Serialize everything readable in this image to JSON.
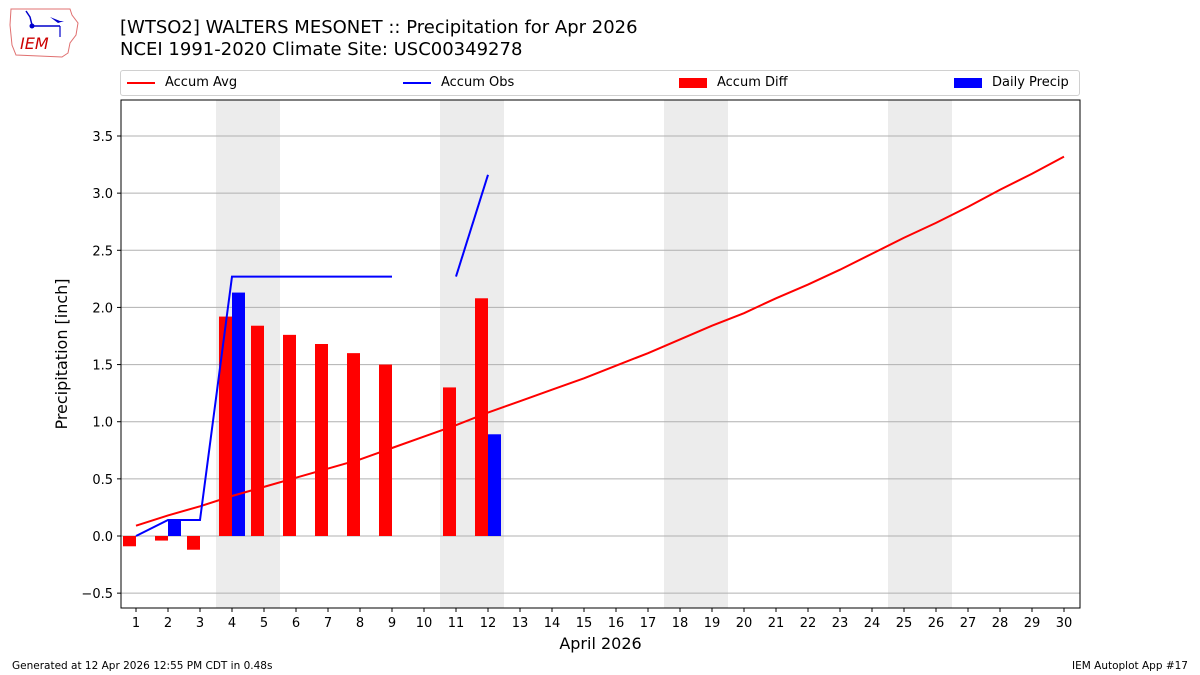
{
  "header": {
    "title_line1": "[WTSO2] WALTERS MESONET :: Precipitation for Apr 2026",
    "title_line2": "NCEI 1991-2020 Climate Site: USC00349278",
    "logo_text": "IEM"
  },
  "legend": [
    {
      "label": "Accum Avg",
      "type": "line",
      "color": "#ff0000"
    },
    {
      "label": "Accum Obs",
      "type": "line",
      "color": "#0000ff"
    },
    {
      "label": "Accum Diff",
      "type": "bar",
      "color": "#ff0000"
    },
    {
      "label": "Daily Precip",
      "type": "bar",
      "color": "#0000ff"
    }
  ],
  "footer": {
    "left": "Generated at 12 Apr 2026 12:55 PM CDT in 0.48s",
    "right": "IEM Autoplot App #17"
  },
  "chart_data": {
    "type": "bar",
    "title": "[WTSO2] WALTERS MESONET :: Precipitation for Apr 2026",
    "subtitle": "NCEI 1991-2020 Climate Site: USC00349278",
    "xlabel": "April 2026",
    "ylabel": "Precipitation [inch]",
    "ylim": [
      -0.63,
      3.82
    ],
    "xlim": [
      0.5,
      30.5
    ],
    "yticks": [
      -0.5,
      0.0,
      0.5,
      1.0,
      1.5,
      2.0,
      2.5,
      3.0,
      3.5
    ],
    "ytick_labels": [
      "−0.5",
      "0.0",
      "0.5",
      "1.0",
      "1.5",
      "2.0",
      "2.5",
      "3.0",
      "3.5"
    ],
    "xticks": [
      1,
      2,
      3,
      4,
      5,
      6,
      7,
      8,
      9,
      10,
      11,
      12,
      13,
      14,
      15,
      16,
      17,
      18,
      19,
      20,
      21,
      22,
      23,
      24,
      25,
      26,
      27,
      28,
      29,
      30
    ],
    "grid": "horizontal",
    "legend_position": "top",
    "weekend_shading": [
      [
        3.5,
        5.5
      ],
      [
        10.5,
        12.5
      ],
      [
        17.5,
        19.5
      ],
      [
        24.5,
        26.5
      ]
    ],
    "series": [
      {
        "name": "Accum Avg",
        "type": "line",
        "color": "#ff0000",
        "x": [
          1,
          2,
          3,
          4,
          5,
          6,
          7,
          8,
          9,
          10,
          11,
          12,
          13,
          14,
          15,
          16,
          17,
          18,
          19,
          20,
          21,
          22,
          23,
          24,
          25,
          26,
          27,
          28,
          29,
          30
        ],
        "values": [
          0.09,
          0.18,
          0.26,
          0.35,
          0.43,
          0.51,
          0.59,
          0.67,
          0.77,
          0.87,
          0.97,
          1.08,
          1.18,
          1.28,
          1.38,
          1.49,
          1.6,
          1.72,
          1.84,
          1.95,
          2.08,
          2.2,
          2.33,
          2.47,
          2.61,
          2.74,
          2.88,
          3.03,
          3.17,
          3.32
        ]
      },
      {
        "name": "Accum Obs",
        "type": "line",
        "color": "#0000ff",
        "x": [
          1,
          2,
          3,
          4,
          5,
          6,
          7,
          8,
          9,
          10,
          11,
          12
        ],
        "values": [
          0.0,
          0.14,
          0.14,
          2.27,
          2.27,
          2.27,
          2.27,
          2.27,
          2.27,
          null,
          2.27,
          3.16
        ]
      },
      {
        "name": "Accum Diff",
        "type": "bar",
        "color": "#ff0000",
        "x": [
          1,
          2,
          3,
          4,
          5,
          6,
          7,
          8,
          9,
          10,
          11,
          12
        ],
        "values": [
          -0.09,
          -0.04,
          -0.12,
          1.92,
          1.84,
          1.76,
          1.68,
          1.6,
          1.5,
          null,
          1.3,
          2.08
        ]
      },
      {
        "name": "Daily Precip",
        "type": "bar",
        "color": "#0000ff",
        "x": [
          1,
          2,
          3,
          4,
          5,
          6,
          7,
          8,
          9,
          10,
          11,
          12
        ],
        "values": [
          0,
          0.14,
          0,
          2.13,
          0,
          0,
          0,
          0,
          0,
          0,
          0,
          0.89
        ]
      }
    ]
  }
}
